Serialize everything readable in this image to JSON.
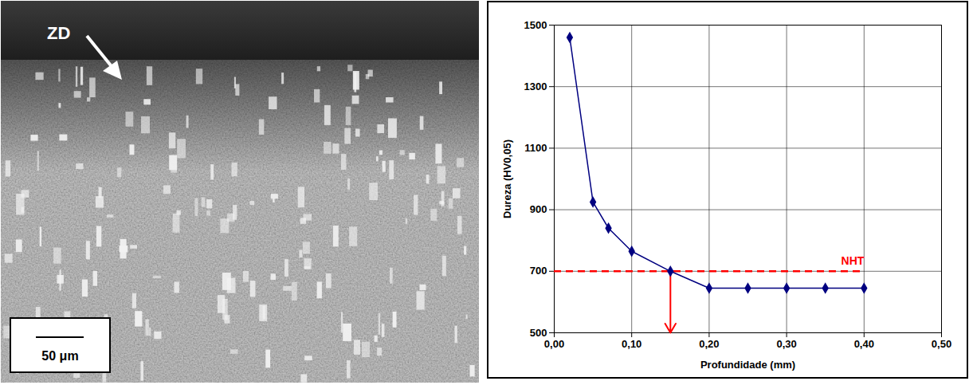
{
  "micrograph": {
    "label": "ZD",
    "scale_bar": "50 μm"
  },
  "chart_data": {
    "type": "line",
    "x_label": "Profundidade (mm)",
    "y_label": "Dureza (HV0,05)",
    "x": [
      0.02,
      0.05,
      0.07,
      0.1,
      0.15,
      0.2,
      0.25,
      0.3,
      0.35,
      0.4
    ],
    "values": [
      1460,
      925,
      840,
      765,
      700,
      645,
      645,
      645,
      645,
      645
    ],
    "color": "#000080",
    "marker": "diamond",
    "line_style": "solid",
    "xlim": [
      0,
      0.5
    ],
    "xticks": [
      {
        "value": 0,
        "label": "0,00"
      },
      {
        "value": 0.1,
        "label": "0,10"
      },
      {
        "value": 0.2,
        "label": "0,20"
      },
      {
        "value": 0.3,
        "label": "0,30"
      },
      {
        "value": 0.4,
        "label": "0,40"
      },
      {
        "value": 0.5,
        "label": "0,50"
      }
    ],
    "ylim": [
      500,
      1500
    ],
    "yticks": [
      500,
      700,
      900,
      1100,
      1300,
      1500
    ],
    "grid": true,
    "annotations": [
      {
        "type": "hline",
        "text": "NHT",
        "y": 700,
        "x": [
          0,
          0.4
        ],
        "color": "#ff0000",
        "line_style": "dashed"
      },
      {
        "type": "arrow",
        "x": 0.15,
        "y": [
          700,
          500
        ],
        "color": "#ff0000"
      }
    ]
  }
}
